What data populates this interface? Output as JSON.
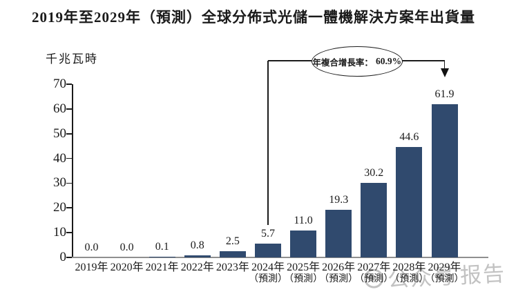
{
  "chart_data": {
    "type": "bar",
    "title": "2019年至2029年（預測）全球分佈式光儲一體機解決方案年出貨量",
    "ylabel": "千兆瓦時",
    "xlabel": "",
    "ylim": [
      0,
      70
    ],
    "yticks": [
      0,
      10,
      20,
      30,
      40,
      50,
      60,
      70
    ],
    "grid": false,
    "legend": null,
    "categories": [
      "2019年",
      "2020年",
      "2021年",
      "2022年",
      "2023年",
      "2024年",
      "2025年",
      "2026年",
      "2027年",
      "2028年",
      "2029年"
    ],
    "forecast_suffix": "（預測）",
    "forecast_from_index": 5,
    "values": [
      0.0,
      0.0,
      0.1,
      0.8,
      2.5,
      5.7,
      11.0,
      19.3,
      30.2,
      44.6,
      61.9
    ],
    "value_labels": [
      "0.0",
      "0.0",
      "0.1",
      "0.8",
      "2.5",
      "5.7",
      "11.0",
      "19.3",
      "30.2",
      "44.6",
      "61.9"
    ],
    "bar_color": "#304a6e",
    "annotation": {
      "label": "年複合增長率：",
      "value": "60.9%",
      "from_category": "2024年",
      "to_category": "2029年"
    }
  },
  "watermark": {
    "logo": "camera-icon",
    "text_left": "公众号",
    "text_right": "报告",
    "color": "#b8b8b8"
  }
}
